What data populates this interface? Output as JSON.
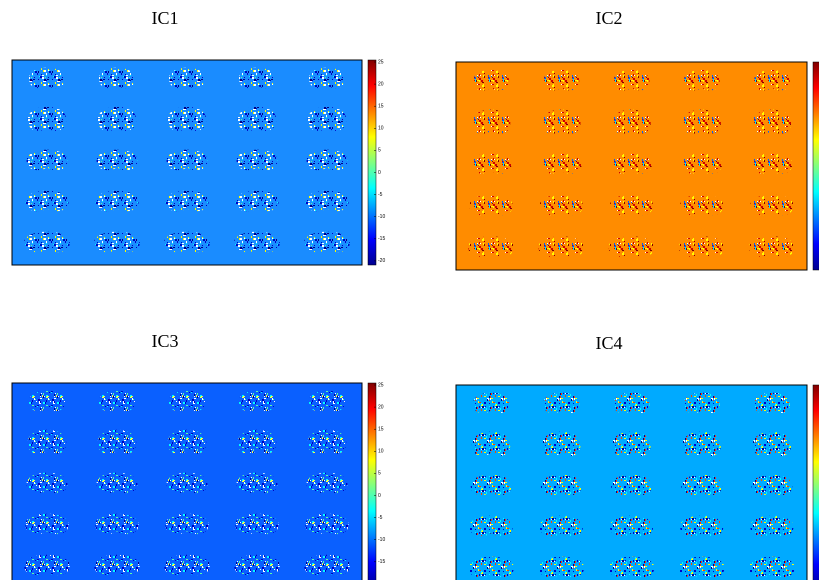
{
  "panels": [
    {
      "title": "IC1",
      "colorbar_ticks": [
        "25",
        "20",
        "15",
        "10",
        "5",
        "0",
        "-5",
        "-10",
        "-15",
        "-20"
      ]
    },
    {
      "title": "IC2"
    },
    {
      "title": "IC3",
      "colorbar_ticks": [
        "25",
        "20",
        "15",
        "10",
        "5",
        "0",
        "-5",
        "-10",
        "-15"
      ]
    },
    {
      "title": "IC4"
    }
  ]
}
